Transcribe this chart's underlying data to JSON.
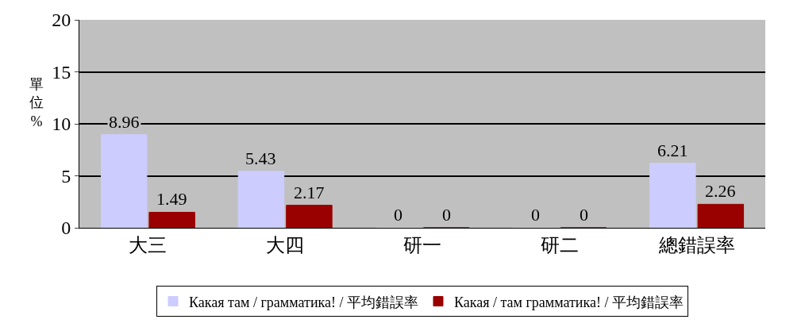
{
  "chart_data": {
    "type": "bar",
    "ylabel": "單位%",
    "categories": [
      "大三",
      "大四",
      "研一",
      "研二",
      "總錯誤率"
    ],
    "series": [
      {
        "name": "Какая там / грамматика! / 平均錯誤率",
        "color": "#ccccff",
        "values": [
          8.96,
          5.43,
          0,
          0,
          6.21
        ]
      },
      {
        "name": "Какая / там грамматика! / 平均錯誤率",
        "color": "#990000",
        "values": [
          1.49,
          2.17,
          0,
          0,
          2.26
        ]
      }
    ],
    "ylim": [
      0,
      20
    ],
    "yticks": [
      0,
      5,
      10,
      15,
      20
    ],
    "grid": "y",
    "legend": "bottom",
    "data_labels": true
  }
}
